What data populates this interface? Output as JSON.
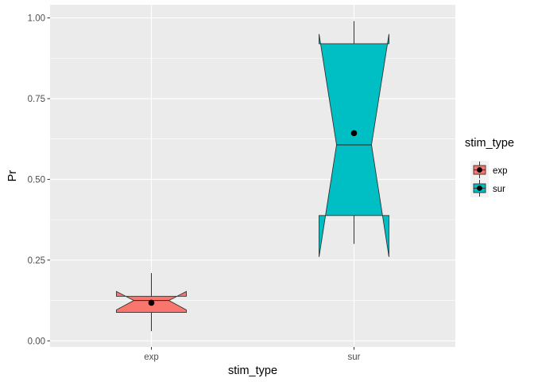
{
  "chart_data": {
    "type": "box",
    "notched": true,
    "xlabel": "stim_type",
    "ylabel": "Pr",
    "ylim": [
      0,
      1
    ],
    "yticks": [
      0.0,
      0.25,
      0.5,
      0.75,
      1.0
    ],
    "ytick_labels": [
      "0.00",
      "0.25",
      "0.50",
      "0.75",
      "1.00"
    ],
    "categories": [
      "exp",
      "sur"
    ],
    "legend": {
      "title": "stim_type",
      "placement": "right",
      "entries": [
        "exp",
        "sur"
      ]
    },
    "series": [
      {
        "name": "exp",
        "color": "#F8766D",
        "whisker_low": 0.03,
        "q1": 0.088,
        "median": 0.125,
        "q3": 0.138,
        "whisker_high": 0.21,
        "notch_low": 0.096,
        "notch_high": 0.153,
        "mean": 0.118
      },
      {
        "name": "sur",
        "color": "#00BFC4",
        "whisker_low": 0.3,
        "q1": 0.388,
        "median": 0.607,
        "q3": 0.92,
        "whisker_high": 0.99,
        "notch_low": 0.26,
        "notch_high": 0.95,
        "mean": 0.643
      }
    ]
  }
}
